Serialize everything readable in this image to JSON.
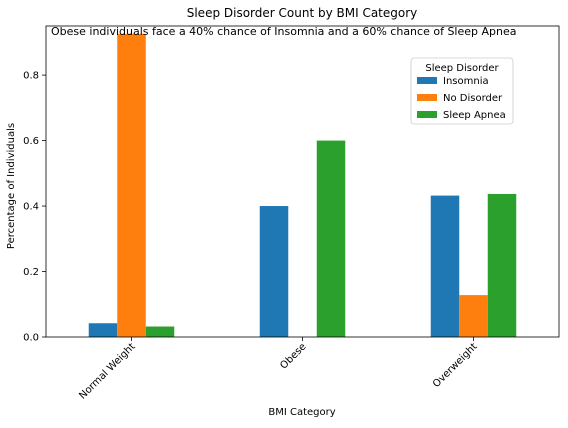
{
  "chart_data": {
    "type": "bar",
    "title": "Sleep Disorder Count by BMI Category",
    "annotation": "Obese individuals face a 40% chance of Insomnia and a 60% chance of Sleep Apnea",
    "xlabel": "BMI Category",
    "ylabel": "Percentage of Individuals",
    "categories": [
      "Normal Weight",
      "Obese",
      "Overweight"
    ],
    "series": [
      {
        "name": "Insomnia",
        "color": "#1f77b4",
        "values": [
          0.042,
          0.4,
          0.432
        ]
      },
      {
        "name": "No Disorder",
        "color": "#ff7f0e",
        "values": [
          0.926,
          0.0,
          0.128
        ]
      },
      {
        "name": "Sleep Apnea",
        "color": "#2ca02c",
        "values": [
          0.032,
          0.6,
          0.437
        ]
      }
    ],
    "ylim": [
      0,
      0.95
    ],
    "yticks": [
      0.0,
      0.2,
      0.4,
      0.6,
      0.8
    ],
    "ytick_labels": [
      "0.0",
      "0.2",
      "0.4",
      "0.6",
      "0.8"
    ],
    "grid": false,
    "legend": {
      "title": "Sleep Disorder",
      "placement": "upper-right"
    }
  }
}
